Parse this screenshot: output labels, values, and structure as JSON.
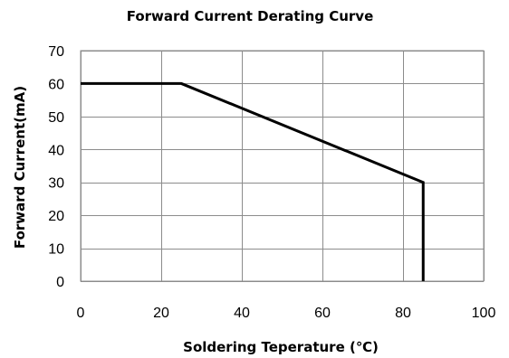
{
  "chart_data": {
    "type": "line",
    "title": "Forward Current Derating Curve",
    "xlabel": "Soldering Teperature (℃)",
    "ylabel": "Forward Current(mA)",
    "xlim": [
      0,
      100
    ],
    "ylim": [
      0,
      70
    ],
    "x_ticks": [
      0,
      20,
      40,
      60,
      80,
      100
    ],
    "y_ticks": [
      0,
      10,
      20,
      30,
      40,
      50,
      60,
      70
    ],
    "x_tick_labels": [
      "0",
      "20",
      "40",
      "60",
      "80",
      "100"
    ],
    "y_tick_labels": [
      "0",
      "10",
      "20",
      "30",
      "40",
      "50",
      "60",
      "70"
    ],
    "grid": true,
    "legend": "none",
    "series": [
      {
        "color": "#000000",
        "points": [
          {
            "x": 0,
            "y": 60
          },
          {
            "x": 25,
            "y": 60
          },
          {
            "x": 85,
            "y": 30
          },
          {
            "x": 85,
            "y": 0
          }
        ]
      }
    ]
  }
}
